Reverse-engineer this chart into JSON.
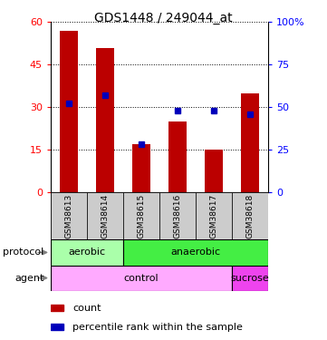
{
  "title": "GDS1448 / 249044_at",
  "samples": [
    "GSM38613",
    "GSM38614",
    "GSM38615",
    "GSM38616",
    "GSM38617",
    "GSM38618"
  ],
  "count_values": [
    57,
    51,
    17,
    25,
    15,
    35
  ],
  "percentile_values": [
    52,
    57,
    28,
    48,
    48,
    46
  ],
  "ylim_left": [
    0,
    60
  ],
  "ylim_right": [
    0,
    100
  ],
  "yticks_left": [
    0,
    15,
    30,
    45,
    60
  ],
  "yticks_right": [
    0,
    25,
    50,
    75,
    100
  ],
  "bar_color": "#bb0000",
  "dot_color": "#0000bb",
  "protocol_data": [
    [
      "aerobic",
      0,
      2,
      "#aaffaa"
    ],
    [
      "anaerobic",
      2,
      6,
      "#44ee44"
    ]
  ],
  "agent_data": [
    [
      "control",
      0,
      5,
      "#ffaaff"
    ],
    [
      "sucrose",
      5,
      6,
      "#ee44ee"
    ]
  ],
  "sample_label_bg": "#cccccc",
  "plot_bg": "#ffffff",
  "legend_count_color": "#bb0000",
  "legend_dot_color": "#0000bb",
  "bar_width": 0.5
}
